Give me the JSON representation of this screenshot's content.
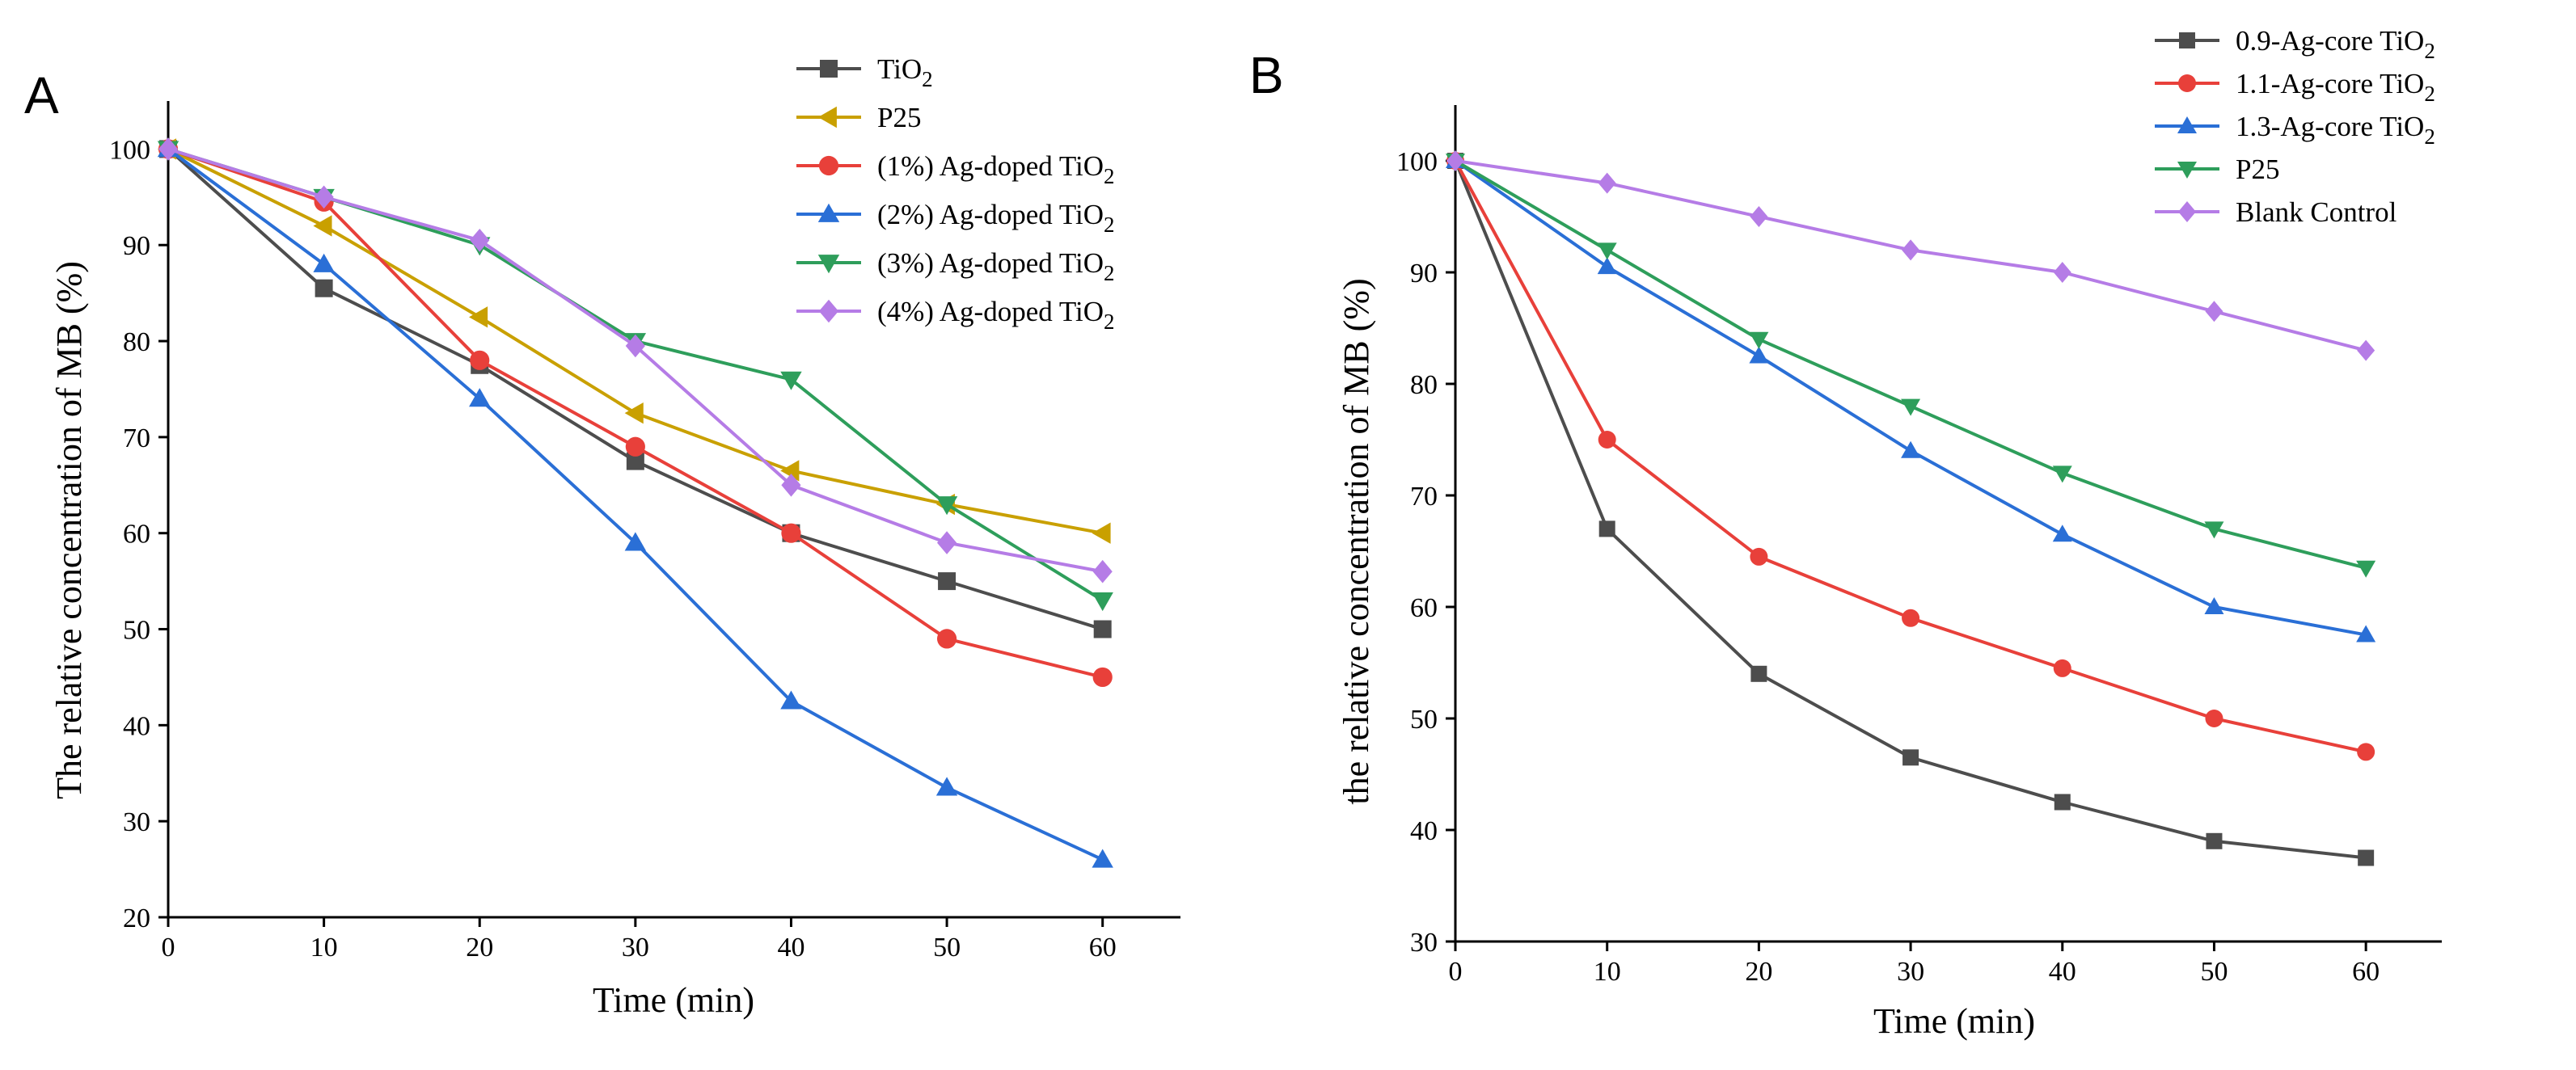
{
  "chart_data": [
    {
      "panel": "A",
      "type": "line",
      "xlabel": "Time (min)",
      "ylabel": "The relative concentration of MB (%)",
      "xlim": [
        0,
        65
      ],
      "ylim": [
        20,
        105
      ],
      "xticks": [
        0,
        10,
        20,
        30,
        40,
        50,
        60
      ],
      "yticks": [
        20,
        30,
        40,
        50,
        60,
        70,
        80,
        90,
        100
      ],
      "x": [
        0,
        10,
        20,
        30,
        40,
        50,
        60
      ],
      "legend_position": "top-right",
      "series": [
        {
          "name": "TiO",
          "sub": "2",
          "color": "#4d4d4d",
          "marker": "square",
          "values": [
            100,
            85.5,
            77.5,
            67.5,
            60,
            55,
            50
          ]
        },
        {
          "name": "P25",
          "sub": "",
          "color": "#c9a000",
          "marker": "triangle-left",
          "values": [
            100,
            92,
            82.5,
            72.5,
            66.5,
            63,
            60
          ]
        },
        {
          "name": "(1%) Ag-doped TiO",
          "sub": "2",
          "color": "#e8403a",
          "marker": "circle",
          "values": [
            100,
            94.5,
            78,
            69,
            60,
            49,
            45
          ]
        },
        {
          "name": "(2%) Ag-doped TiO",
          "sub": "2",
          "color": "#2a6fd6",
          "marker": "triangle-up",
          "values": [
            100,
            88,
            74,
            59,
            42.5,
            33.5,
            26
          ]
        },
        {
          "name": "(3%) Ag-doped TiO",
          "sub": "2",
          "color": "#2e9e5b",
          "marker": "triangle-down",
          "values": [
            100,
            95,
            90,
            80,
            76,
            63,
            53
          ]
        },
        {
          "name": "(4%) Ag-doped TiO",
          "sub": "2",
          "color": "#b57ce6",
          "marker": "diamond",
          "values": [
            100,
            95,
            90.5,
            79.5,
            65,
            59,
            56
          ]
        }
      ]
    },
    {
      "panel": "B",
      "type": "line",
      "xlabel": "Time (min)",
      "ylabel": "the relative concentration of MB (%)",
      "xlim": [
        0,
        65
      ],
      "ylim": [
        30,
        105
      ],
      "xticks": [
        0,
        10,
        20,
        30,
        40,
        50,
        60
      ],
      "yticks": [
        30,
        40,
        50,
        60,
        70,
        80,
        90,
        100
      ],
      "x": [
        0,
        10,
        20,
        30,
        40,
        50,
        60
      ],
      "legend_position": "top-right",
      "series": [
        {
          "name": "0.9-Ag-core TiO",
          "sub": "2",
          "color": "#4d4d4d",
          "marker": "square",
          "values": [
            100,
            67,
            54,
            46.5,
            42.5,
            39,
            37.5
          ]
        },
        {
          "name": "1.1-Ag-core TiO",
          "sub": "2",
          "color": "#e8403a",
          "marker": "circle",
          "values": [
            100,
            75,
            64.5,
            59,
            54.5,
            50,
            47
          ]
        },
        {
          "name": "1.3-Ag-core TiO",
          "sub": "2",
          "color": "#2a6fd6",
          "marker": "triangle-up",
          "values": [
            100,
            90.5,
            82.5,
            74,
            66.5,
            60,
            57.5
          ]
        },
        {
          "name": "P25",
          "sub": "",
          "color": "#2e9e5b",
          "marker": "triangle-down",
          "values": [
            100,
            92,
            84,
            78,
            72,
            67,
            63.5
          ]
        },
        {
          "name": "Blank Control",
          "sub": "",
          "color": "#b57ce6",
          "marker": "diamond",
          "values": [
            100,
            98,
            95,
            92,
            90,
            86.5,
            83
          ]
        }
      ]
    }
  ]
}
